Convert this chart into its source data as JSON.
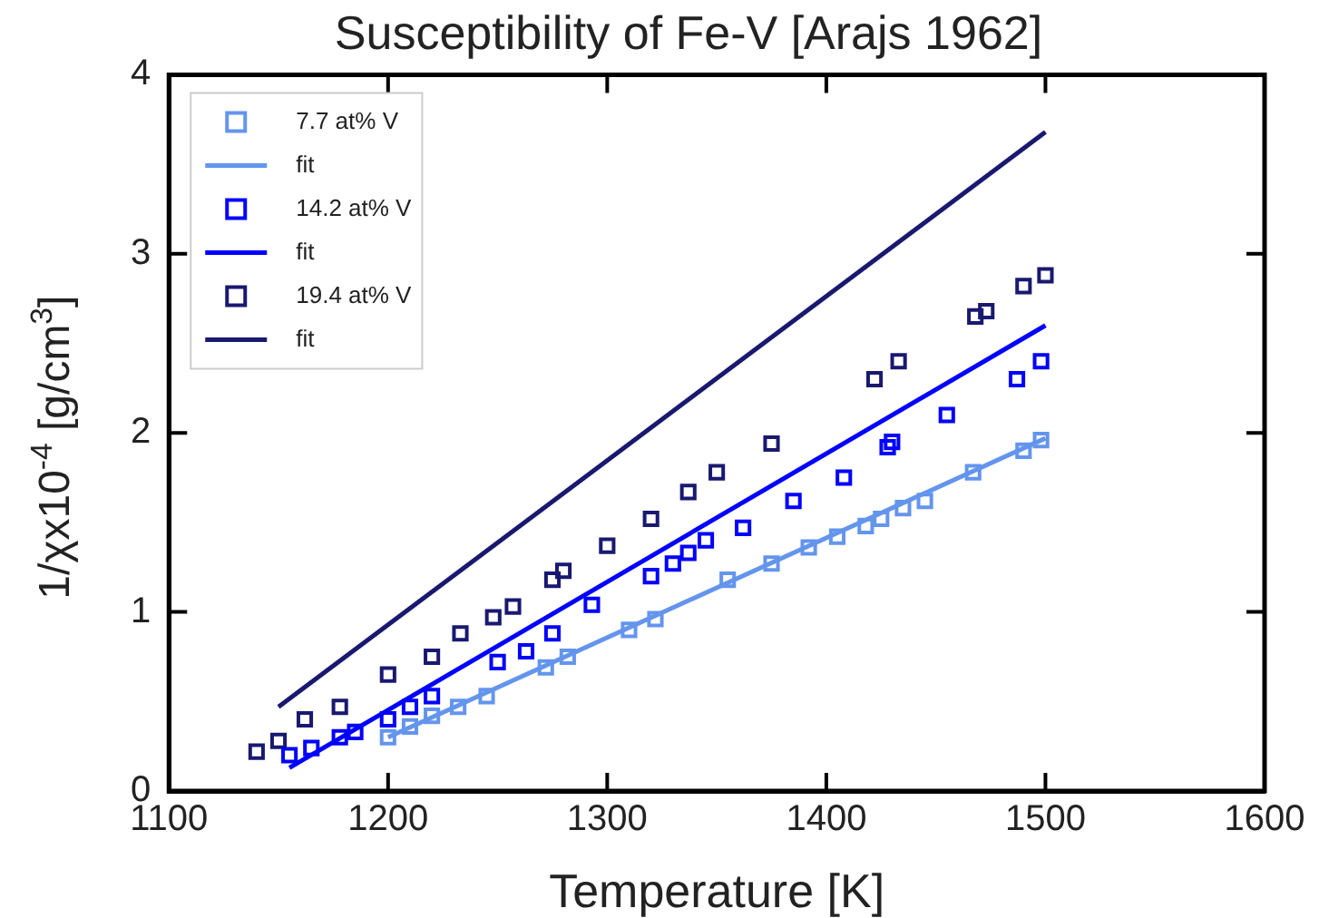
{
  "chart_data": {
    "type": "scatter",
    "title": "Susceptibility of Fe-V [Arajs 1962]",
    "xlabel": "Temperature [K]",
    "ylabel": "1/χx10$^{-4}$ [g/cm$^{3}$]",
    "xlim": [
      1100,
      1600
    ],
    "xticks": [
      1100,
      1200,
      1300,
      1400,
      1500,
      1600
    ],
    "ylim": [
      0,
      4
    ],
    "yticks": [
      0,
      1,
      2,
      3,
      4
    ],
    "grid": false,
    "legend": "top left",
    "series": [
      {
        "name": "7.7 at% V",
        "type": "scatter",
        "marker": "square",
        "color": "#6495ed",
        "x": [
          1200,
          1210,
          1220,
          1232,
          1245,
          1272,
          1282,
          1310,
          1322,
          1355,
          1375,
          1392,
          1405,
          1418,
          1425,
          1435,
          1445,
          1467,
          1490,
          1498
        ],
        "values": [
          0.3,
          0.36,
          0.42,
          0.47,
          0.53,
          0.69,
          0.75,
          0.9,
          0.96,
          1.18,
          1.27,
          1.36,
          1.42,
          1.48,
          1.52,
          1.58,
          1.62,
          1.78,
          1.9,
          1.96
        ]
      },
      {
        "name": "fit",
        "type": "line",
        "color": "#6495ed",
        "x": [
          1200,
          1500
        ],
        "values": [
          0.3,
          1.97
        ]
      },
      {
        "name": "14.2 at% V",
        "type": "scatter",
        "marker": "square",
        "color": "#0000ff",
        "x": [
          1155,
          1165,
          1178,
          1185,
          1200,
          1210,
          1220,
          1250,
          1263,
          1275,
          1293,
          1320,
          1330,
          1337,
          1345,
          1362,
          1385,
          1408,
          1428,
          1430,
          1455,
          1487,
          1498
        ],
        "values": [
          0.2,
          0.24,
          0.3,
          0.33,
          0.4,
          0.47,
          0.53,
          0.72,
          0.78,
          0.88,
          1.04,
          1.2,
          1.27,
          1.33,
          1.4,
          1.47,
          1.62,
          1.75,
          1.92,
          1.95,
          2.1,
          2.3,
          2.4
        ]
      },
      {
        "name": "fit",
        "type": "line",
        "color": "#0000ff",
        "x": [
          1155,
          1500
        ],
        "values": [
          0.13,
          2.6
        ]
      },
      {
        "name": "19.4 at% V",
        "type": "scatter",
        "marker": "square",
        "color": "#191970",
        "x": [
          1140,
          1150,
          1162,
          1178,
          1200,
          1220,
          1233,
          1248,
          1257,
          1275,
          1280,
          1300,
          1320,
          1337,
          1350,
          1375,
          1422,
          1433,
          1468,
          1473,
          1490,
          1500
        ],
        "values": [
          0.22,
          0.28,
          0.4,
          0.47,
          0.65,
          0.75,
          0.88,
          0.97,
          1.03,
          1.18,
          1.23,
          1.37,
          1.52,
          1.67,
          1.78,
          1.94,
          2.3,
          2.4,
          2.65,
          2.68,
          2.82,
          2.88
        ]
      },
      {
        "name": "fit",
        "type": "line",
        "color": "#191970",
        "x": [
          1150,
          1500
        ],
        "values": [
          0.47,
          3.68
        ]
      }
    ]
  }
}
